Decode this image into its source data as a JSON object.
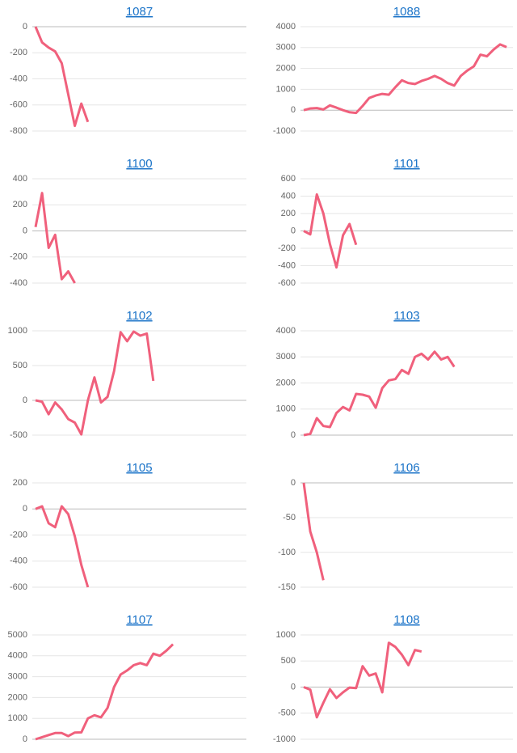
{
  "chart_data": [
    {
      "type": "line",
      "title": "1087",
      "color": "#f0607c",
      "grid": true,
      "ylim": [
        -800,
        0
      ],
      "yticks": [
        0,
        -200,
        -400,
        -600,
        -800
      ],
      "values": [
        0,
        -120,
        -160,
        -190,
        -280,
        -520,
        -760,
        -590,
        -730
      ]
    },
    {
      "type": "line",
      "title": "1088",
      "color": "#f0607c",
      "grid": true,
      "ylim": [
        -1000,
        4000
      ],
      "yticks": [
        4000,
        3000,
        2000,
        1000,
        0,
        -1000
      ],
      "values": [
        0,
        80,
        100,
        30,
        230,
        120,
        0,
        -100,
        -130,
        200,
        580,
        700,
        780,
        740,
        1100,
        1430,
        1300,
        1250,
        1400,
        1500,
        1640,
        1500,
        1300,
        1180,
        1640,
        1900,
        2100,
        2660,
        2580,
        2900,
        3150,
        3020
      ]
    },
    {
      "type": "line",
      "title": "1100",
      "color": "#f0607c",
      "grid": true,
      "ylim": [
        -400,
        400
      ],
      "yticks": [
        400,
        200,
        0,
        -200,
        -400
      ],
      "values": [
        30,
        290,
        -130,
        -30,
        -370,
        -310,
        -400
      ]
    },
    {
      "type": "line",
      "title": "1101",
      "color": "#f0607c",
      "grid": true,
      "ylim": [
        -600,
        600
      ],
      "yticks": [
        600,
        400,
        200,
        0,
        -200,
        -400,
        -600
      ],
      "values": [
        0,
        -40,
        420,
        200,
        -150,
        -420,
        -50,
        80,
        -160
      ]
    },
    {
      "type": "line",
      "title": "1102",
      "color": "#f0607c",
      "grid": true,
      "ylim": [
        -500,
        1000
      ],
      "yticks": [
        1000,
        500,
        0,
        -500
      ],
      "values": [
        0,
        -20,
        -200,
        -30,
        -130,
        -270,
        -320,
        -490,
        0,
        330,
        -30,
        50,
        420,
        980,
        850,
        990,
        930,
        960,
        280
      ]
    },
    {
      "type": "line",
      "title": "1103",
      "color": "#f0607c",
      "grid": true,
      "ylim": [
        0,
        4000
      ],
      "yticks": [
        4000,
        3000,
        2000,
        1000,
        0
      ],
      "values": [
        0,
        50,
        650,
        350,
        310,
        850,
        1080,
        950,
        1580,
        1550,
        1480,
        1050,
        1800,
        2100,
        2150,
        2500,
        2350,
        3000,
        3120,
        2900,
        3200,
        2900,
        3000,
        2620
      ]
    },
    {
      "type": "line",
      "title": "1105",
      "color": "#f0607c",
      "grid": true,
      "ylim": [
        -600,
        200
      ],
      "yticks": [
        200,
        0,
        -200,
        -400,
        -600
      ],
      "values": [
        0,
        20,
        -110,
        -140,
        20,
        -40,
        -210,
        -430,
        -600
      ]
    },
    {
      "type": "line",
      "title": "1106",
      "color": "#f0607c",
      "grid": true,
      "ylim": [
        -150,
        0
      ],
      "yticks": [
        0,
        -50,
        -100,
        -150
      ],
      "values": [
        0,
        -70,
        -100,
        -140
      ]
    },
    {
      "type": "line",
      "title": "1107",
      "color": "#f0607c",
      "grid": true,
      "ylim": [
        0,
        5000
      ],
      "yticks": [
        5000,
        4000,
        3000,
        2000,
        1000,
        0
      ],
      "values": [
        0,
        100,
        200,
        300,
        300,
        150,
        320,
        330,
        1000,
        1150,
        1050,
        1500,
        2500,
        3100,
        3300,
        3550,
        3650,
        3550,
        4100,
        4000,
        4250,
        4550
      ]
    },
    {
      "type": "line",
      "title": "1108",
      "color": "#f0607c",
      "grid": true,
      "ylim": [
        -1000,
        1000
      ],
      "yticks": [
        1000,
        500,
        0,
        -500,
        -1000
      ],
      "values": [
        0,
        -50,
        -580,
        -300,
        -40,
        -210,
        -100,
        -10,
        -20,
        400,
        220,
        260,
        -100,
        850,
        770,
        620,
        420,
        710,
        680
      ]
    }
  ]
}
